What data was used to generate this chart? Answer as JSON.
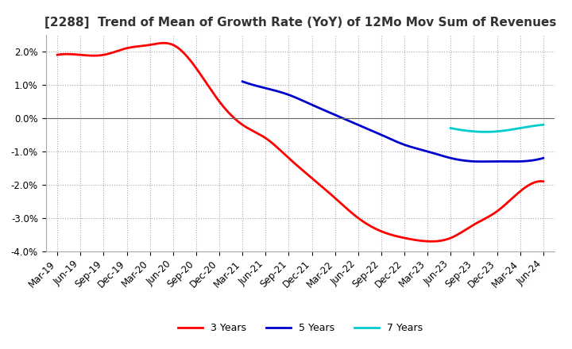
{
  "title": "[2288]  Trend of Mean of Growth Rate (YoY) of 12Mo Mov Sum of Revenues",
  "ylim": [
    -0.04,
    0.025
  ],
  "yticks": [
    -0.04,
    -0.03,
    -0.02,
    -0.01,
    0.0,
    0.01,
    0.02
  ],
  "x_labels": [
    "Mar-19",
    "Jun-19",
    "Sep-19",
    "Dec-19",
    "Mar-20",
    "Jun-20",
    "Sep-20",
    "Dec-20",
    "Mar-21",
    "Jun-21",
    "Sep-21",
    "Dec-21",
    "Mar-22",
    "Jun-22",
    "Sep-22",
    "Dec-22",
    "Mar-23",
    "Jun-23",
    "Sep-23",
    "Dec-23",
    "Mar-24",
    "Jun-24"
  ],
  "series": {
    "3 Years": {
      "color": "#ff0000",
      "data": [
        0.019,
        0.019,
        0.019,
        0.021,
        0.022,
        0.022,
        0.015,
        0.005,
        -0.002,
        -0.006,
        -0.012,
        -0.018,
        -0.024,
        -0.03,
        -0.034,
        -0.036,
        -0.037,
        -0.036,
        -0.032,
        -0.028,
        -0.022,
        -0.019
      ]
    },
    "5 Years": {
      "color": "#0000cd",
      "data": [
        null,
        null,
        null,
        null,
        null,
        null,
        null,
        null,
        0.011,
        0.009,
        0.007,
        0.004,
        0.001,
        -0.002,
        -0.005,
        -0.008,
        -0.01,
        -0.012,
        -0.013,
        -0.013,
        -0.013,
        -0.012
      ]
    },
    "7 Years": {
      "color": "#00cccc",
      "data": [
        null,
        null,
        null,
        null,
        null,
        null,
        null,
        null,
        null,
        null,
        null,
        null,
        null,
        null,
        null,
        null,
        null,
        -0.003,
        -0.004,
        -0.004,
        -0.003,
        -0.002
      ]
    },
    "10 Years": {
      "color": "#006400",
      "data": [
        null,
        null,
        null,
        null,
        null,
        null,
        null,
        null,
        null,
        null,
        null,
        null,
        null,
        null,
        null,
        null,
        null,
        null,
        null,
        null,
        null,
        null
      ]
    }
  },
  "background_color": "#ffffff",
  "grid_color": "#aaaaaa",
  "title_fontsize": 11,
  "tick_fontsize": 8.5,
  "legend_fontsize": 9
}
